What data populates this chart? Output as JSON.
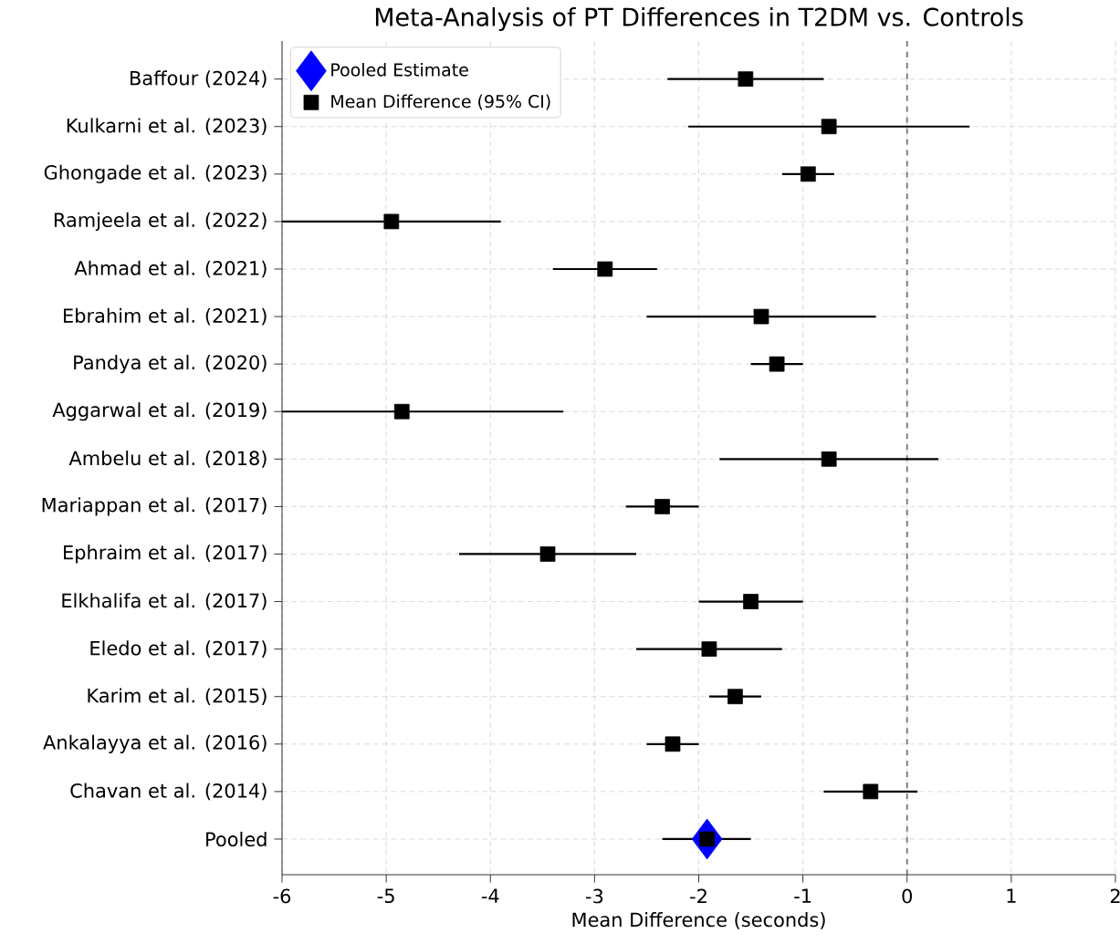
{
  "chart_data": {
    "type": "scatter",
    "orientation": "horizontal",
    "title": "Meta-Analysis of PT Differences in T2DM vs. Controls",
    "xlabel": "Mean Difference (seconds)",
    "categories": [
      "Baffour (2024)",
      "Kulkarni et al. (2023)",
      "Ghongade et al. (2023)",
      "Ramjeela et al. (2022)",
      "Ahmad et al. (2021)",
      "Ebrahim et al. (2021)",
      "Pandya et al. (2020)",
      "Aggarwal et al. (2019)",
      "Ambelu et al. (2018)",
      "Mariappan et al. (2017)",
      "Ephraim et al. (2017)",
      "Elkhalifa et al. (2017)",
      "Eledo et al. (2017)",
      "Karim et al. (2015)",
      "Ankalayya et al. (2016)",
      "Chavan et al. (2014)",
      "Pooled"
    ],
    "series": [
      {
        "name": "Pooled Estimate",
        "color": "#0000ff",
        "marker": "diamond",
        "values": [
          null,
          null,
          null,
          null,
          null,
          null,
          null,
          null,
          null,
          null,
          null,
          null,
          null,
          null,
          null,
          null,
          -1.92
        ]
      },
      {
        "name": "Mean Difference (95% CI)",
        "color": "#000000",
        "marker": "square",
        "values": [
          -1.55,
          -0.75,
          -0.95,
          -4.95,
          -2.9,
          -1.4,
          -1.25,
          -4.85,
          -0.75,
          -2.35,
          -3.45,
          -1.5,
          -1.9,
          -1.65,
          -2.25,
          -0.35,
          -1.92
        ],
        "errors": [
          [
            -2.3,
            -0.8
          ],
          [
            -2.1,
            0.6
          ],
          [
            -1.2,
            -0.7
          ],
          [
            -6.0,
            -3.9
          ],
          [
            -3.4,
            -2.4
          ],
          [
            -2.5,
            -0.3
          ],
          [
            -1.5,
            -1.0
          ],
          [
            -6.0,
            -3.3
          ],
          [
            -1.8,
            0.3
          ],
          [
            -2.7,
            -2.0
          ],
          [
            -4.3,
            -2.6
          ],
          [
            -2.0,
            -1.0
          ],
          [
            -2.6,
            -1.2
          ],
          [
            -1.9,
            -1.4
          ],
          [
            -2.5,
            -2.0
          ],
          [
            -0.8,
            0.1
          ],
          [
            -2.35,
            -1.5
          ]
        ]
      }
    ],
    "xlim": [
      -6,
      2
    ],
    "xticks": [
      -6,
      -5,
      -4,
      -3,
      -2,
      -1,
      0,
      1,
      2
    ],
    "ref_lines": [
      {
        "axis": "x",
        "value": 0,
        "color": "#808080",
        "line_style": "dashed"
      }
    ],
    "grid": true,
    "legend": "top left"
  }
}
